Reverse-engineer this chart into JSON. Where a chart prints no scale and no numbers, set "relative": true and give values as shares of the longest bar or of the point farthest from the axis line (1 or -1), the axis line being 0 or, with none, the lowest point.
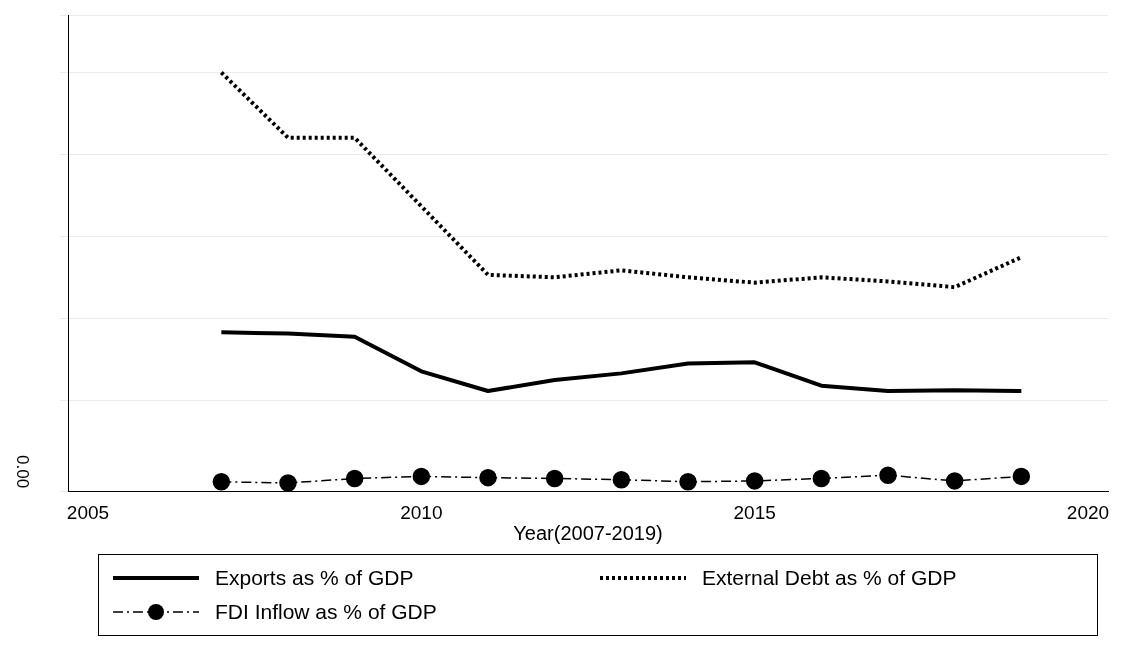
{
  "chart_data": {
    "type": "line",
    "relative": true,
    "xlabel": "Year(2007-2019)",
    "x": [
      2007,
      2008,
      2009,
      2010,
      2011,
      2012,
      2013,
      2014,
      2015,
      2016,
      2017,
      2018,
      2019
    ],
    "xlim": [
      2004.7,
      2020.3
    ],
    "xticks": [
      2005,
      2010,
      2015,
      2020
    ],
    "series": [
      {
        "name": "Exports as % of GDP",
        "color": "#000000",
        "line_style": "solid",
        "marker": "none",
        "values": [
          0.367,
          0.364,
          0.356,
          0.272,
          0.224,
          0.251,
          0.267,
          0.291,
          0.294,
          0.237,
          0.224,
          0.226,
          0.224
        ]
      },
      {
        "name": "External Debt as % of GDP",
        "color": "#000000",
        "line_style": "dotted",
        "marker": "none",
        "values": [
          1.0,
          0.841,
          0.841,
          0.674,
          0.507,
          0.501,
          0.518,
          0.501,
          0.488,
          0.501,
          0.491,
          0.477,
          0.55
        ]
      },
      {
        "name": "FDI Inflow as % of GDP",
        "color": "#000000",
        "line_style": "dashed",
        "marker": "circle",
        "values": [
          0.003,
          0,
          0.011,
          0.016,
          0.013,
          0.011,
          0.008,
          0.003,
          0.005,
          0.011,
          0.019,
          0.005,
          0.016
        ]
      }
    ],
    "annotations": [
      "0.00"
    ],
    "grid": "y",
    "legend": "bottom"
  }
}
